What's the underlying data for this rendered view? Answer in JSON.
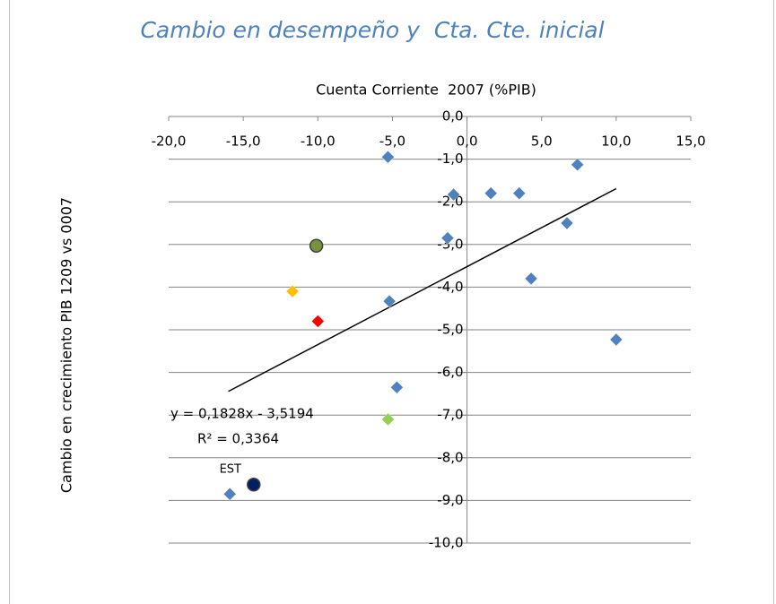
{
  "chart_data": {
    "type": "scatter",
    "title": "Cambio en desempeño y  Cta. Cte. inicial",
    "x_label": "Cuenta Corriente  2007 (%PIB)",
    "y_label": "Cambio en crecimiento PIB 1209 vs 0007",
    "xlim": [
      -20,
      15
    ],
    "ylim": [
      -10,
      0
    ],
    "xticks": [
      {
        "value": -20,
        "label": "-20,0"
      },
      {
        "value": -15,
        "label": "-15,0"
      },
      {
        "value": -10,
        "label": "-10,0"
      },
      {
        "value": -5,
        "label": "-5,0"
      },
      {
        "value": 0,
        "label": "0,0"
      },
      {
        "value": 5,
        "label": "5,0"
      },
      {
        "value": 10,
        "label": "10,0"
      },
      {
        "value": 15,
        "label": "15,0"
      }
    ],
    "yticks": [
      {
        "value": 0,
        "label": "0,0"
      },
      {
        "value": -1,
        "label": "-1,0"
      },
      {
        "value": -2,
        "label": "-2,0"
      },
      {
        "value": -3,
        "label": "-3,0"
      },
      {
        "value": -4,
        "label": "-4,0"
      },
      {
        "value": -5,
        "label": "-5,0"
      },
      {
        "value": -6,
        "label": "-6,0"
      },
      {
        "value": -7,
        "label": "-7,0"
      },
      {
        "value": -8,
        "label": "-8,0"
      },
      {
        "value": -9,
        "label": "-9,0"
      },
      {
        "value": -10,
        "label": "-10,0"
      }
    ],
    "grid": true,
    "series": [
      {
        "color": "#4f81bd",
        "marker": "diamond",
        "x": [
          -5.3,
          7.4,
          -0.9,
          1.6,
          3.5,
          6.7,
          -1.3,
          4.3,
          -5.2,
          10.0,
          -4.7,
          -15.9
        ],
        "values": [
          -0.95,
          -1.13,
          -1.83,
          -1.8,
          -1.8,
          -2.5,
          -2.85,
          -3.8,
          -4.33,
          -5.23,
          -6.35,
          -8.85
        ]
      },
      {
        "color": "#77933c",
        "marker": "circle",
        "x": [
          -10.1
        ],
        "values": [
          -3.03
        ]
      },
      {
        "color": "#ffc000",
        "marker": "diamond",
        "x": [
          -11.7
        ],
        "values": [
          -4.1
        ]
      },
      {
        "color": "#ff0000",
        "marker": "diamond",
        "x": [
          -10.0
        ],
        "values": [
          -4.8
        ]
      },
      {
        "color": "#92d050",
        "marker": "diamond",
        "x": [
          -5.3
        ],
        "values": [
          -7.1
        ]
      },
      {
        "color": "#002060",
        "marker": "circle",
        "x": [
          -14.3
        ],
        "values": [
          -8.63
        ],
        "point_label": "EST"
      }
    ],
    "trendline": {
      "equation": "y = 0,1828x - 3,5194",
      "r2_label": "R² = 0,3364",
      "slope": 0.1828,
      "intercept": -3.5194,
      "xlim": [
        -16,
        10
      ]
    }
  }
}
